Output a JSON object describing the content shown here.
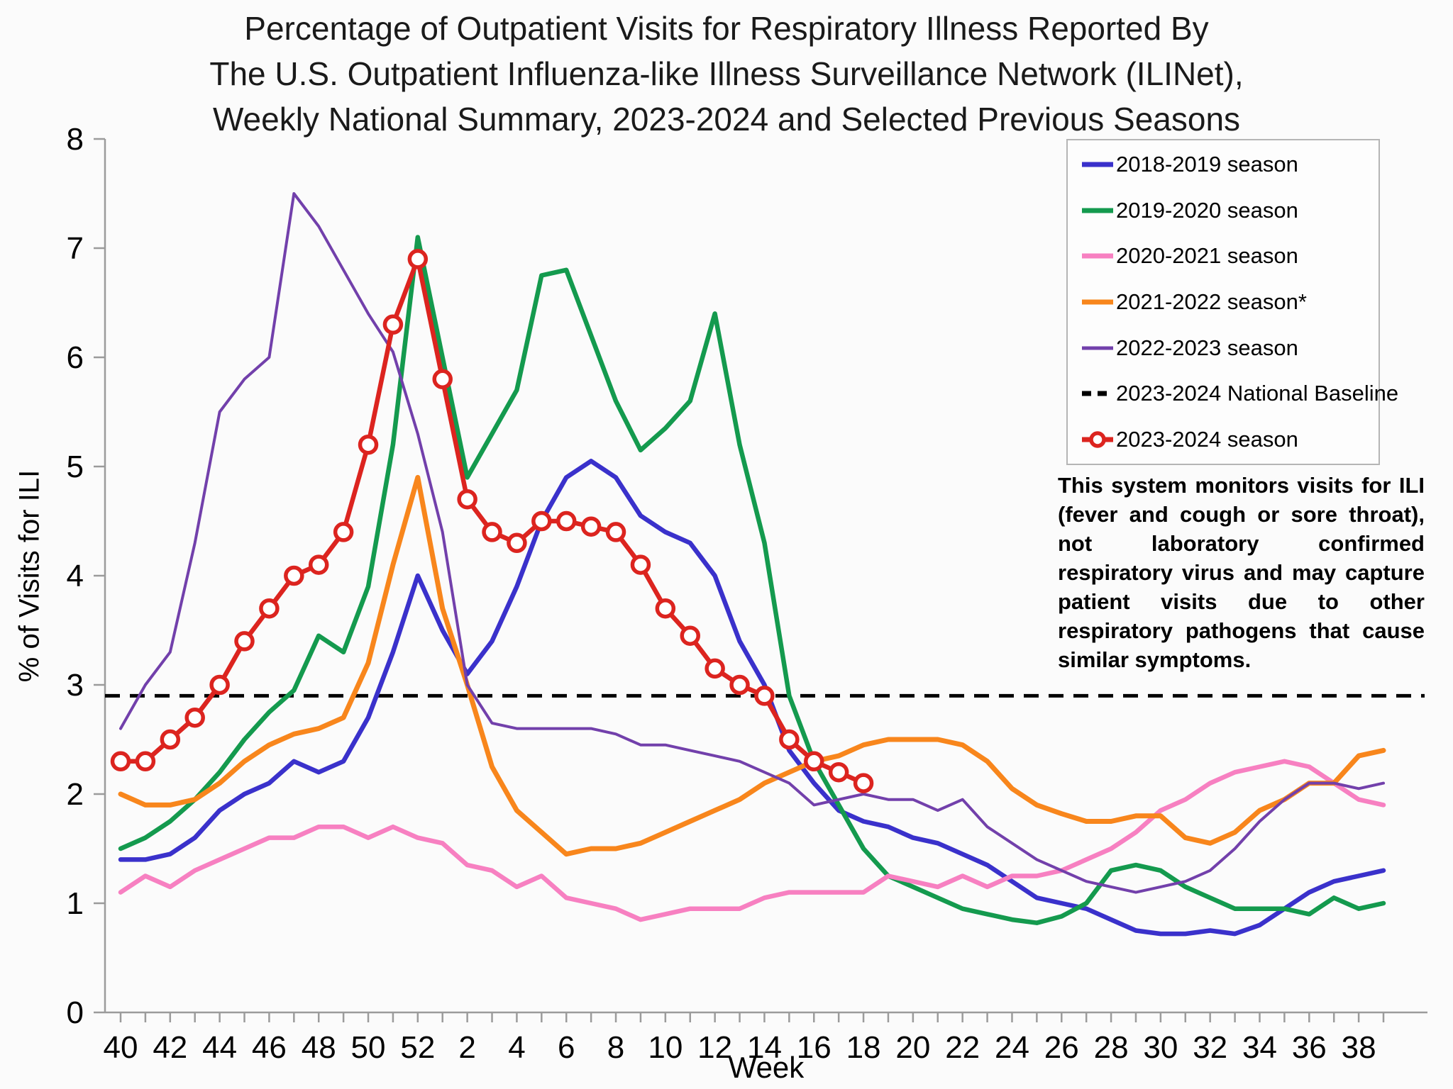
{
  "title": {
    "line1": "Percentage of Outpatient Visits for Respiratory Illness Reported By",
    "line2": "The U.S. Outpatient Influenza-like Illness Surveillance Network (ILINet),",
    "line3": "Weekly National Summary, 2023-2024 and Selected Previous Seasons"
  },
  "axes": {
    "x_label": "Week",
    "y_label": "% of Visits for ILI",
    "y_ticks": [
      0,
      1,
      2,
      3,
      4,
      5,
      6,
      7,
      8
    ],
    "ylim": [
      0,
      8
    ]
  },
  "note": {
    "text": "This system monitors visits for ILI (fever and cough or sore throat), not laboratory confirmed respiratory virus and may capture patient visits due to other respiratory pathogens that cause similar symptoms."
  },
  "legend": {
    "items": [
      {
        "id": "season-2018-2019",
        "label": "2018-2019 season",
        "color": "#3a31cb",
        "style": "line"
      },
      {
        "id": "season-2019-2020",
        "label": "2019-2020 season",
        "color": "#149a4e",
        "style": "line"
      },
      {
        "id": "season-2020-2021",
        "label": "2020-2021 season",
        "color": "#f780c1",
        "style": "line"
      },
      {
        "id": "season-2021-2022",
        "label": "2021-2022 season*",
        "color": "#f8861c",
        "style": "line"
      },
      {
        "id": "season-2022-2023",
        "label": "2022-2023 season",
        "color": "#7240ab",
        "style": "thinline"
      },
      {
        "id": "national-baseline",
        "label": "2023-2024 National Baseline",
        "color": "#000000",
        "style": "dashed"
      },
      {
        "id": "season-2023-2024",
        "label": "2023-2024 season",
        "color": "#dc241f",
        "style": "circle-line"
      }
    ]
  },
  "chart_data": {
    "type": "line",
    "title": "Percentage of Outpatient Visits for Respiratory Illness (ILINet), Weekly National Summary, 2023-2024 and Selected Previous Seasons",
    "xlabel": "Week",
    "ylabel": "% of Visits for ILI",
    "ylim": [
      0,
      8
    ],
    "grid": false,
    "legend_position": "upper right",
    "x_categories": [
      "40",
      "41",
      "42",
      "43",
      "44",
      "45",
      "46",
      "47",
      "48",
      "49",
      "50",
      "51",
      "52",
      "1",
      "2",
      "3",
      "4",
      "5",
      "6",
      "7",
      "8",
      "9",
      "10",
      "11",
      "12",
      "13",
      "14",
      "15",
      "16",
      "17",
      "18",
      "19",
      "20",
      "21",
      "22",
      "23",
      "24",
      "25",
      "26",
      "27",
      "28",
      "29",
      "30",
      "31",
      "32",
      "33",
      "34",
      "35",
      "36",
      "37",
      "38",
      "39"
    ],
    "baseline": {
      "label": "2023-2024 National Baseline",
      "value": 2.9,
      "color": "#000000",
      "style": "dashed"
    },
    "series": [
      {
        "name": "2018-2019 season",
        "color": "#3a31cb",
        "width": 6.5,
        "markers": false,
        "values": [
          1.4,
          1.4,
          1.45,
          1.6,
          1.85,
          2.0,
          2.1,
          2.3,
          2.2,
          2.3,
          2.7,
          3.3,
          4.0,
          3.5,
          3.1,
          3.4,
          3.9,
          4.5,
          4.9,
          5.05,
          4.9,
          4.55,
          4.4,
          4.3,
          4.0,
          3.4,
          3.0,
          2.4,
          2.1,
          1.85,
          1.75,
          1.7,
          1.6,
          1.55,
          1.45,
          1.35,
          1.2,
          1.05,
          1.0,
          0.95,
          0.85,
          0.75,
          0.72,
          0.72,
          0.75,
          0.72,
          0.8,
          0.95,
          1.1,
          1.2,
          1.25,
          1.3
        ]
      },
      {
        "name": "2019-2020 season",
        "color": "#149a4e",
        "width": 6.5,
        "markers": false,
        "values": [
          1.5,
          1.6,
          1.75,
          1.95,
          2.2,
          2.5,
          2.75,
          2.95,
          3.45,
          3.3,
          3.9,
          5.2,
          7.1,
          6.0,
          4.9,
          5.3,
          5.7,
          6.75,
          6.8,
          6.2,
          5.6,
          5.15,
          5.35,
          5.6,
          6.4,
          5.2,
          4.3,
          2.9,
          2.3,
          1.9,
          1.5,
          1.25,
          1.15,
          1.05,
          0.95,
          0.9,
          0.85,
          0.82,
          0.88,
          1.0,
          1.3,
          1.35,
          1.3,
          1.15,
          1.05,
          0.95,
          0.95,
          0.95,
          0.9,
          1.05,
          0.95,
          1.0
        ]
      },
      {
        "name": "2020-2021 season",
        "color": "#f780c1",
        "width": 6.5,
        "markers": false,
        "values": [
          1.1,
          1.25,
          1.15,
          1.3,
          1.4,
          1.5,
          1.6,
          1.6,
          1.7,
          1.7,
          1.6,
          1.7,
          1.6,
          1.55,
          1.35,
          1.3,
          1.15,
          1.25,
          1.05,
          1.0,
          0.95,
          0.85,
          0.9,
          0.95,
          0.95,
          0.95,
          1.05,
          1.1,
          1.1,
          1.1,
          1.1,
          1.25,
          1.2,
          1.15,
          1.25,
          1.15,
          1.25,
          1.25,
          1.3,
          1.4,
          1.5,
          1.65,
          1.85,
          1.95,
          2.1,
          2.2,
          2.25,
          2.3,
          2.25,
          2.1,
          1.95,
          1.9
        ]
      },
      {
        "name": "2021-2022 season*",
        "color": "#f8861c",
        "width": 7,
        "markers": false,
        "values": [
          2.0,
          1.9,
          1.9,
          1.95,
          2.1,
          2.3,
          2.45,
          2.55,
          2.6,
          2.7,
          3.2,
          4.1,
          4.9,
          3.7,
          3.0,
          2.25,
          1.85,
          1.65,
          1.45,
          1.5,
          1.5,
          1.55,
          1.65,
          1.75,
          1.85,
          1.95,
          2.1,
          2.2,
          2.3,
          2.35,
          2.45,
          2.5,
          2.5,
          2.5,
          2.45,
          2.3,
          2.05,
          1.9,
          1.82,
          1.75,
          1.75,
          1.8,
          1.8,
          1.6,
          1.55,
          1.65,
          1.85,
          1.95,
          2.1,
          2.1,
          2.35,
          2.4
        ]
      },
      {
        "name": "2022-2023 season",
        "color": "#7240ab",
        "width": 4,
        "markers": false,
        "values": [
          2.6,
          3.0,
          3.3,
          4.3,
          5.5,
          5.8,
          6.0,
          7.5,
          7.2,
          6.8,
          6.4,
          6.05,
          5.3,
          4.4,
          3.0,
          2.65,
          2.6,
          2.6,
          2.6,
          2.6,
          2.55,
          2.45,
          2.45,
          2.4,
          2.35,
          2.3,
          2.2,
          2.1,
          1.9,
          1.95,
          2.0,
          1.95,
          1.95,
          1.85,
          1.95,
          1.7,
          1.55,
          1.4,
          1.3,
          1.2,
          1.15,
          1.1,
          1.15,
          1.2,
          1.3,
          1.5,
          1.75,
          1.95,
          2.1,
          2.1,
          2.05,
          2.1
        ]
      },
      {
        "name": "2023-2024 season",
        "color": "#dc241f",
        "width": 6.5,
        "markers": true,
        "values": [
          2.3,
          2.3,
          2.5,
          2.7,
          3.0,
          3.4,
          3.7,
          4.0,
          4.1,
          4.4,
          5.2,
          6.3,
          6.9,
          5.8,
          4.7,
          4.4,
          4.3,
          4.5,
          4.5,
          4.45,
          4.4,
          4.1,
          3.7,
          3.45,
          3.15,
          3.0,
          2.9,
          2.5,
          2.3,
          2.2,
          2.1,
          null,
          null,
          null,
          null,
          null,
          null,
          null,
          null,
          null,
          null,
          null,
          null,
          null,
          null,
          null,
          null,
          null,
          null,
          null,
          null,
          null
        ]
      }
    ]
  }
}
